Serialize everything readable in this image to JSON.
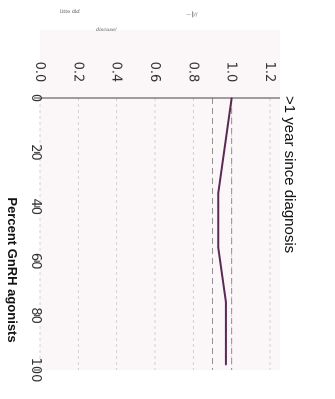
{
  "chart_data": {
    "type": "line",
    "title": ">1 year since diagnosis",
    "xlabel": "Percent GnRH agonists",
    "ylabel": "",
    "xlim": [
      0,
      100
    ],
    "ylim": [
      0,
      1.2
    ],
    "x_ticks": [
      "0",
      "20",
      "40",
      "60",
      "80",
      "100"
    ],
    "y_ticks": [
      "0.0",
      "0.2",
      "0.4",
      "0.6",
      "0.8",
      "1.0",
      "1.2"
    ],
    "reference_lines": [
      1.0,
      0.9
    ],
    "grid": true,
    "series": [
      {
        "color": "#5a2a55",
        "x": [
          0,
          5,
          10,
          15,
          20,
          25,
          30,
          35,
          40,
          45,
          50,
          55,
          60,
          65,
          70,
          75,
          80,
          85,
          90,
          95,
          98
        ],
        "y": [
          1.0,
          0.99,
          0.98,
          0.97,
          0.96,
          0.95,
          0.94,
          0.93,
          0.93,
          0.93,
          0.93,
          0.93,
          0.94,
          0.95,
          0.96,
          0.97,
          0.97,
          0.97,
          0.97,
          0.97,
          0.97
        ]
      }
    ],
    "scribbles": [
      "litte dkf",
      "discuse/",
      "—║/∕"
    ]
  }
}
